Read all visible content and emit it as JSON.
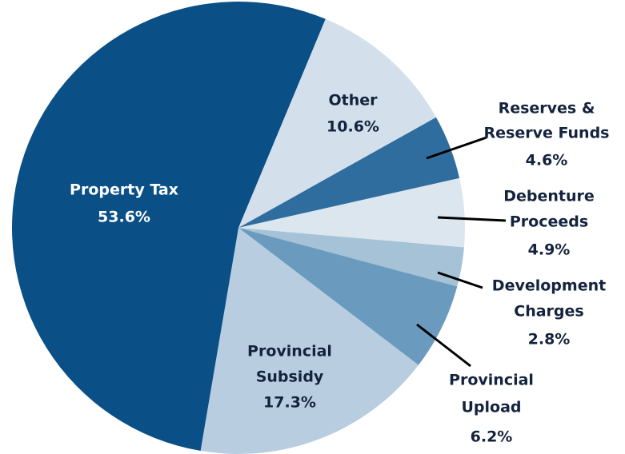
{
  "chart_data": {
    "type": "pie",
    "categories": [
      [
        "Other"
      ],
      [
        "Reserves &",
        "Reserve Funds"
      ],
      [
        "Debenture",
        "Proceeds"
      ],
      [
        "Development",
        "Charges"
      ],
      [
        "Provincial",
        "Upload"
      ],
      [
        "Provincial",
        "Subsidy"
      ],
      [
        "Property Tax"
      ]
    ],
    "values": [
      10.6,
      4.6,
      4.9,
      2.8,
      6.2,
      17.3,
      53.6
    ],
    "value_labels": [
      "10.6%",
      "4.6%",
      "4.9%",
      "2.8%",
      "6.2%",
      "17.3%",
      "53.6%"
    ],
    "colors": [
      "#d3e0eb",
      "#2f6d9e",
      "#dbe6ef",
      "#a6c2d7",
      "#6a9bbe",
      "#b8cee0",
      "#0a4f86"
    ]
  }
}
